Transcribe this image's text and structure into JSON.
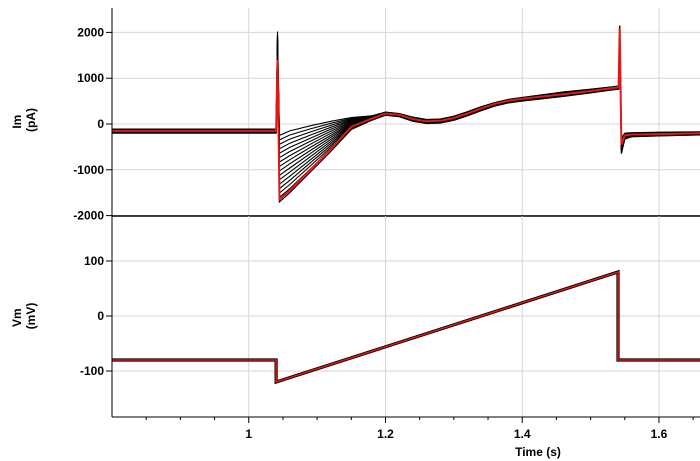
{
  "chart_data": [
    {
      "type": "line",
      "ylabel": "Im",
      "yunit": "(pA)",
      "xlim": [
        0.8,
        1.66
      ],
      "ylim": [
        -2200,
        2200
      ],
      "yticks": [
        {
          "value": 2000,
          "label": "2000"
        },
        {
          "value": 1000,
          "label": "1000"
        },
        {
          "value": 0,
          "label": "0"
        },
        {
          "value": -1000,
          "label": "-1000"
        },
        {
          "value": -2000,
          "label": "-2000"
        }
      ],
      "grid": true,
      "colors": {
        "traces": "#000000",
        "fit": "#dd1a1a"
      },
      "series": [
        {
          "role": "fit",
          "x": [
            0.8,
            1.035,
            1.04,
            1.042,
            1.045,
            1.06,
            1.09,
            1.12,
            1.15,
            1.18,
            1.2,
            1.22,
            1.24,
            1.26,
            1.28,
            1.3,
            1.32,
            1.34,
            1.36,
            1.38,
            1.4,
            1.43,
            1.46,
            1.5,
            1.53,
            1.541,
            1.5425,
            1.545,
            1.55,
            1.56,
            1.6,
            1.66
          ],
          "y": [
            -150,
            -150,
            -150,
            1400,
            -1650,
            -1450,
            -1000,
            -550,
            -60,
            120,
            230,
            200,
            110,
            60,
            70,
            130,
            230,
            340,
            440,
            510,
            550,
            600,
            650,
            720,
            780,
            800,
            2100,
            -450,
            -250,
            -230,
            -220,
            -200
          ]
        },
        {
          "role": "traces",
          "x": [
            0.8,
            1.035,
            1.04,
            1.042,
            1.045,
            1.06,
            1.09,
            1.12,
            1.15,
            1.18,
            1.2,
            1.22,
            1.24,
            1.26,
            1.28,
            1.3,
            1.32,
            1.34,
            1.36,
            1.38,
            1.4,
            1.43,
            1.46,
            1.5,
            1.53,
            1.541,
            1.5425,
            1.545,
            1.55,
            1.56,
            1.6,
            1.66
          ],
          "y_low": [
            -200,
            -200,
            -200,
            1300,
            -1700,
            -1500,
            -1050,
            -600,
            -120,
            80,
            190,
            160,
            60,
            10,
            20,
            80,
            180,
            290,
            390,
            460,
            500,
            550,
            600,
            680,
            740,
            760,
            2000,
            -650,
            -330,
            -280,
            -260,
            -240
          ],
          "y_high": [
            -110,
            -110,
            -110,
            2020,
            -250,
            -150,
            -40,
            60,
            140,
            180,
            260,
            230,
            150,
            100,
            110,
            170,
            270,
            380,
            470,
            540,
            580,
            640,
            700,
            760,
            810,
            830,
            2150,
            -300,
            -200,
            -190,
            -180,
            -170
          ]
        }
      ]
    },
    {
      "type": "line",
      "ylabel": "Vm",
      "yunit": "(mV)",
      "xlabel": "Time (s)",
      "xlim": [
        0.8,
        1.66
      ],
      "ylim": [
        -150,
        150
      ],
      "yticks": [
        {
          "value": 100,
          "label": "100"
        },
        {
          "value": 0,
          "label": "0"
        },
        {
          "value": -100,
          "label": "-100"
        }
      ],
      "xticks": [
        {
          "value": 1.0,
          "label": "1"
        },
        {
          "value": 1.2,
          "label": "1.2"
        },
        {
          "value": 1.4,
          "label": "1.4"
        },
        {
          "value": 1.6,
          "label": "1.6"
        }
      ],
      "grid": true,
      "colors": {
        "traces": "#000000",
        "fit": "#dd1a1a"
      },
      "series": [
        {
          "role": "command",
          "x": [
            0.8,
            1.04,
            1.04,
            1.54,
            1.54,
            1.66
          ],
          "y": [
            -80,
            -80,
            -120,
            80,
            -80,
            -80
          ]
        }
      ]
    }
  ]
}
